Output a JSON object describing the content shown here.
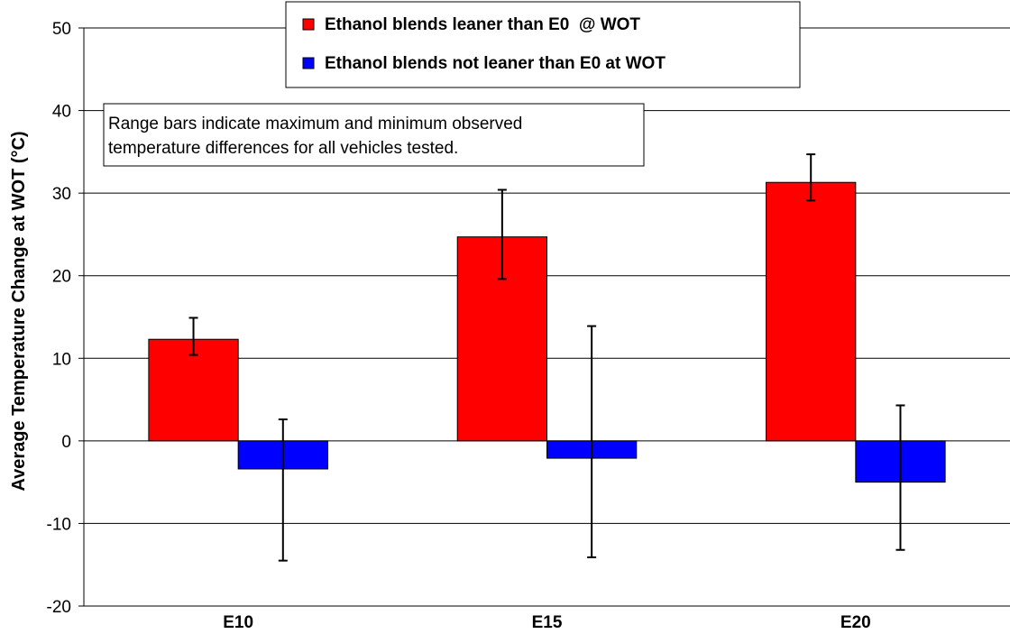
{
  "chart_data": {
    "type": "bar",
    "categories": [
      "E10",
      "E15",
      "E20"
    ],
    "ylabel": "Average Temperature Change at WOT  (°C)",
    "xlabel": "",
    "ylim": [
      -20,
      50
    ],
    "yticks": [
      -20,
      -10,
      0,
      10,
      20,
      30,
      40,
      50
    ],
    "grid": true,
    "legend_position": "top-center",
    "series": [
      {
        "name": "Ethanol blends leaner than E0  @ WOT",
        "color": "#ff0000",
        "values": [
          12.3,
          24.7,
          31.3
        ],
        "range_max": [
          14.9,
          30.4,
          34.7
        ],
        "range_min": [
          10.4,
          19.6,
          29.1
        ]
      },
      {
        "name": "Ethanol blends not leaner than E0 at WOT",
        "color": "#0000ff",
        "values": [
          -3.4,
          -2.1,
          -5.0
        ],
        "range_max": [
          2.6,
          13.9,
          4.3
        ],
        "range_min": [
          -14.5,
          -14.1,
          -13.2
        ]
      }
    ],
    "annotation": [
      "Range bars indicate maximum and minimum observed",
      "temperature differences for all vehicles tested."
    ]
  }
}
